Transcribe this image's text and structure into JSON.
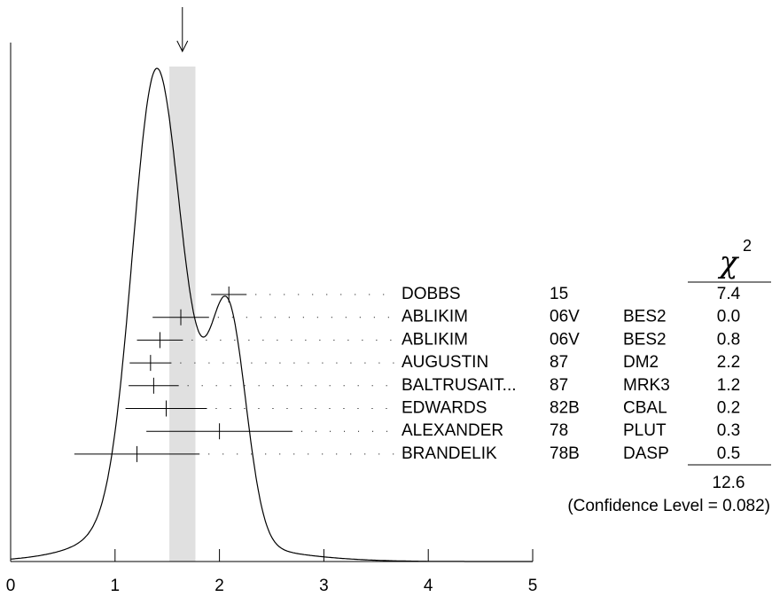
{
  "chart_data": {
    "type": "ideogram",
    "names": [
      "DOBBS",
      "ABLIKIM",
      "ABLIKIM",
      "AUGUSTIN",
      "BALTRUSAIT...",
      "EDWARDS",
      "ALEXANDER",
      "BRANDELIK"
    ],
    "years": [
      "15",
      "06V",
      "06V",
      "87",
      "87",
      "82B",
      "78",
      "78B"
    ],
    "experiments": [
      null,
      "BES2",
      "BES2",
      "DM2",
      "MRK3",
      "CBAL",
      "PLUT",
      "DASP"
    ],
    "values": [
      2.09,
      1.63,
      1.43,
      1.34,
      1.37,
      1.49,
      2.0,
      1.21
    ],
    "errors": [
      0.17,
      0.27,
      0.22,
      0.2,
      0.24,
      0.39,
      0.7,
      0.6
    ],
    "chi2": [
      "7.4",
      "0.0",
      "0.8",
      "2.2",
      "1.2",
      "0.2",
      "0.3",
      "0.5"
    ],
    "chi2_symbol": "χ",
    "chi2_power": "2",
    "chi2_total": "12.6",
    "confidence": "(Confidence Level = 0.082)",
    "average": 1.645,
    "average_error": 0.125,
    "xlim": [
      0,
      5
    ],
    "xticks": [
      0,
      1,
      2,
      3,
      4,
      5
    ]
  }
}
